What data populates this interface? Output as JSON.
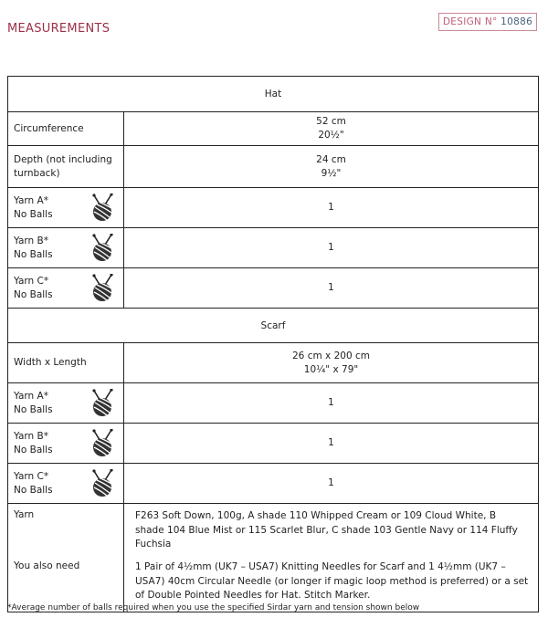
{
  "header": {
    "title": "MEASUREMENTS",
    "design_label": "DESIGN N°",
    "design_number": "10886"
  },
  "hat": {
    "heading": "Hat",
    "rows": [
      {
        "label": "Circumference",
        "value": [
          "52 cm",
          "20½\""
        ]
      },
      {
        "label": "Depth (not including turnback)",
        "value": [
          "24 cm",
          "9½\""
        ]
      },
      {
        "label": [
          "Yarn A*",
          "No Balls"
        ],
        "value": "1",
        "icon": "yarn-ball-icon"
      },
      {
        "label": [
          "Yarn B*",
          "No Balls"
        ],
        "value": "1",
        "icon": "yarn-ball-icon"
      },
      {
        "label": [
          "Yarn C*",
          "No Balls"
        ],
        "value": "1",
        "icon": "yarn-ball-icon"
      }
    ]
  },
  "scarf": {
    "heading": "Scarf",
    "rows": [
      {
        "label": "Width x Length",
        "value": [
          "26 cm x 200 cm",
          "10¼\" x 79\""
        ]
      },
      {
        "label": [
          "Yarn A*",
          "No Balls"
        ],
        "value": "1",
        "icon": "yarn-ball-icon"
      },
      {
        "label": [
          "Yarn B*",
          "No Balls"
        ],
        "value": "1",
        "icon": "yarn-ball-icon"
      },
      {
        "label": [
          "Yarn C*",
          "No Balls"
        ],
        "value": "1",
        "icon": "yarn-ball-icon"
      }
    ]
  },
  "yarn": {
    "label": "Yarn",
    "value": "F263 Soft Down, 100g, A shade 110 Whipped Cream or 109 Cloud White, B shade 104 Blue Mist or 115 Scarlet Blur, C shade 103 Gentle Navy or 114 Fluffy Fuchsia"
  },
  "also_need": {
    "label": "You also need",
    "value": "1 Pair of 4½mm (UK7 – USA7) Knitting Needles for Scarf and 1 4½mm (UK7 – USA7) 40cm Circular Needle (or longer if magic loop method is preferred) or a set of Double Pointed Needles for Hat. Stitch Marker."
  },
  "footnote": "*Average number of balls required when you use the specified Sirdar yarn and tension shown below",
  "colors": {
    "title": "#9a2f45",
    "design_border": "#c98a96"
  }
}
